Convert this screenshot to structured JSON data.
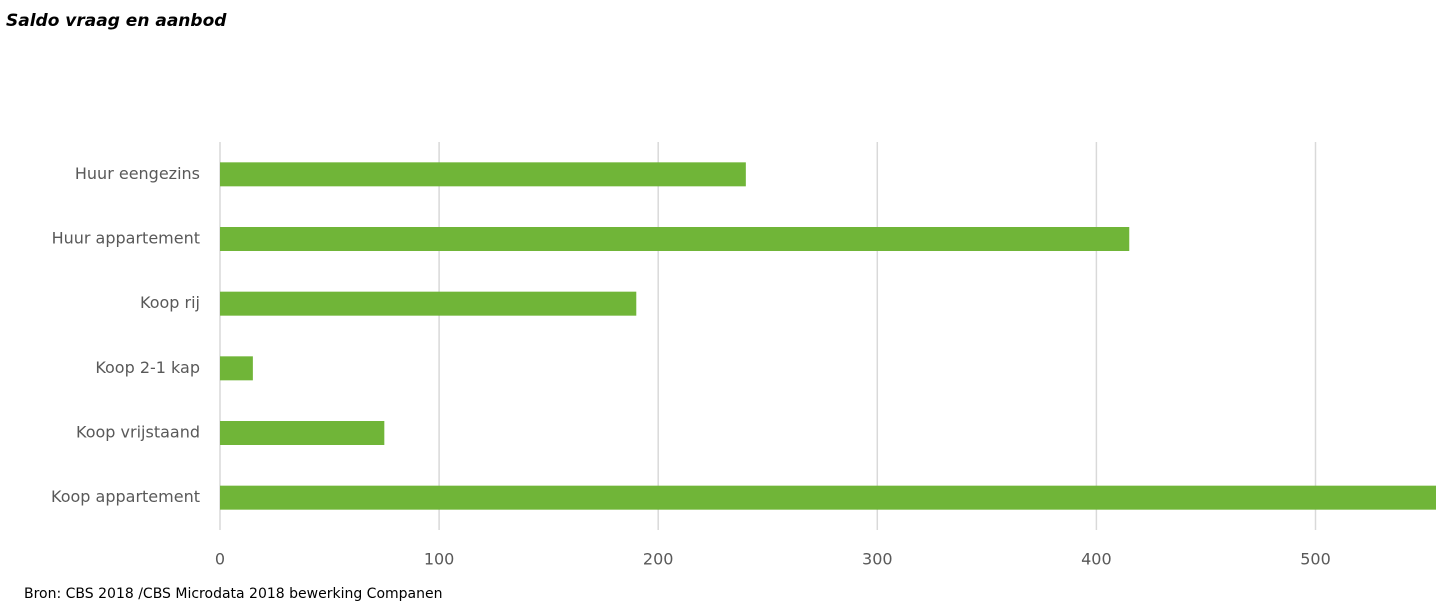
{
  "chart_data": {
    "type": "bar",
    "orientation": "horizontal",
    "title": "Saldo vraag en aanbod",
    "source": "Bron: CBS 2018 /CBS Microdata 2018 bewerking Companen",
    "categories": [
      "Huur eengezins",
      "Huur appartement",
      "Koop rij",
      "Koop 2-1 kap",
      "Koop vrijstaand",
      "Koop appartement"
    ],
    "values": [
      240,
      415,
      190,
      15,
      75,
      555
    ],
    "color": "#70b538",
    "xlim": [
      0,
      555
    ],
    "xticks": [
      0,
      100,
      200,
      300,
      400,
      500
    ],
    "grid": true
  }
}
